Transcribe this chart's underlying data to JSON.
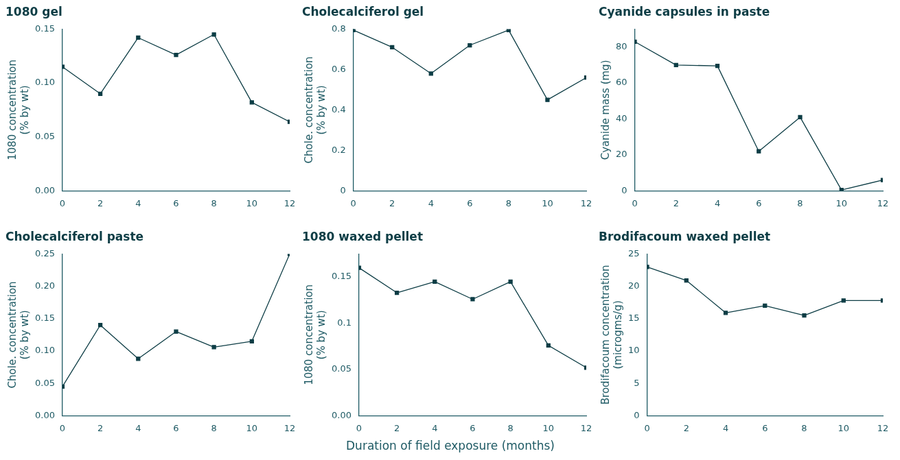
{
  "chart_data": [
    {
      "type": "line",
      "title": "1080 gel",
      "ylabel": "1080 concentration (% by wt)",
      "x": [
        0,
        2,
        4,
        6,
        8,
        10,
        12
      ],
      "xlim": [
        0,
        12
      ],
      "xticks": [
        0,
        2,
        4,
        6,
        8,
        10,
        12
      ],
      "ylim": [
        0,
        0.15
      ],
      "yticks": [
        {
          "value": 0,
          "label": "0.00"
        },
        {
          "value": 0.05,
          "label": "0.05"
        },
        {
          "value": 0.1,
          "label": "0.10"
        },
        {
          "value": 0.15,
          "label": "0.15"
        }
      ],
      "marker": "square",
      "line_style": "solid",
      "grid": false,
      "color": "#0d3d45",
      "values": [
        0.115,
        0.09,
        0.142,
        0.126,
        0.145,
        0.082,
        0.064
      ]
    },
    {
      "type": "line",
      "title": "Cholecalciferol gel",
      "ylabel": "Chole. concentration (% by wt)",
      "x": [
        0,
        2,
        4,
        6,
        8,
        10,
        12
      ],
      "xlim": [
        0,
        12
      ],
      "xticks": [
        0,
        2,
        4,
        6,
        8,
        10,
        12
      ],
      "ylim": [
        0,
        0.8
      ],
      "yticks": [
        0,
        0.2,
        0.4,
        0.6,
        0.8
      ],
      "marker": "square",
      "line_style": "solid",
      "grid": false,
      "color": "#0d3d45",
      "values": [
        0.795,
        0.71,
        0.58,
        0.72,
        0.795,
        0.45,
        0.56
      ]
    },
    {
      "type": "line",
      "title": "Cyanide capsules in paste",
      "ylabel": "Cyanide mass (mg)",
      "x": [
        0,
        2,
        4,
        6,
        8,
        10,
        12
      ],
      "xlim": [
        0,
        12
      ],
      "xticks": [
        0,
        2,
        4,
        6,
        8,
        10,
        12
      ],
      "ylim": [
        0,
        90
      ],
      "yticks": [
        0,
        20,
        40,
        60,
        80
      ],
      "marker": "square",
      "line_style": "solid",
      "grid": false,
      "color": "#0d3d45",
      "values": [
        83,
        70,
        69.5,
        22,
        41,
        0.5,
        6
      ]
    },
    {
      "type": "line",
      "title": "Cholecalciferol paste",
      "ylabel": "Chole. concentration (% by wt)",
      "x": [
        0,
        2,
        4,
        6,
        8,
        10,
        12
      ],
      "xlim": [
        0,
        12
      ],
      "xticks": [
        0,
        2,
        4,
        6,
        8,
        10,
        12
      ],
      "ylim": [
        0,
        0.25
      ],
      "yticks": [
        {
          "value": 0,
          "label": "0.00"
        },
        {
          "value": 0.05,
          "label": "0.05"
        },
        {
          "value": 0.1,
          "label": "0.10"
        },
        {
          "value": 0.15,
          "label": "0.15"
        },
        {
          "value": 0.2,
          "label": "0.20"
        },
        {
          "value": 0.25,
          "label": "0.25"
        }
      ],
      "marker": "square",
      "line_style": "solid",
      "grid": false,
      "color": "#0d3d45",
      "values": [
        0.045,
        0.14,
        0.088,
        0.13,
        0.106,
        0.115,
        0.25
      ]
    },
    {
      "type": "line",
      "title": "1080 waxed pellet",
      "ylabel": "1080 concentration (% by wt)",
      "xlabel": "Duration of field exposure (months)",
      "x": [
        0,
        2,
        4,
        6,
        8,
        10,
        12
      ],
      "xlim": [
        0,
        12
      ],
      "xticks": [
        0,
        2,
        4,
        6,
        8,
        10,
        12
      ],
      "ylim": [
        0,
        0.175
      ],
      "yticks": [
        {
          "value": 0,
          "label": "0.00"
        },
        {
          "value": 0.05,
          "label": "0.05"
        },
        0.1,
        0.15
      ],
      "marker": "square",
      "line_style": "solid",
      "grid": false,
      "color": "#0d3d45",
      "values": [
        0.16,
        0.133,
        0.145,
        0.126,
        0.145,
        0.076,
        0.052
      ]
    },
    {
      "type": "line",
      "title": "Brodifacoum waxed pellet",
      "ylabel": "Brodifacoum concentration (microgms/g)",
      "x": [
        0,
        2,
        4,
        6,
        8,
        10,
        12
      ],
      "xlim": [
        0,
        12
      ],
      "xticks": [
        0,
        2,
        4,
        6,
        8,
        10,
        12
      ],
      "ylim": [
        0,
        25
      ],
      "yticks": [
        0,
        5,
        10,
        15,
        20,
        25
      ],
      "marker": "square",
      "line_style": "solid",
      "grid": false,
      "color": "#0d3d45",
      "values": [
        23,
        20.9,
        15.9,
        17,
        15.5,
        17.8,
        17.8
      ]
    }
  ]
}
